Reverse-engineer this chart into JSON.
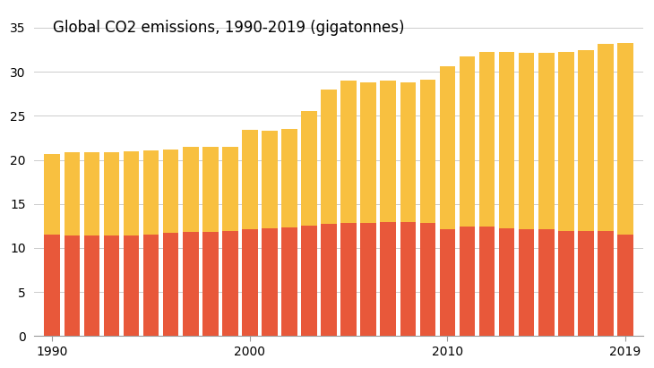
{
  "title": "Global CO2 emissions, 1990-2019 (gigatonnes)",
  "years": [
    1990,
    1991,
    1992,
    1993,
    1994,
    1995,
    1996,
    1997,
    1998,
    1999,
    2000,
    2001,
    2002,
    2003,
    2004,
    2005,
    2006,
    2007,
    2008,
    2009,
    2010,
    2011,
    2012,
    2013,
    2014,
    2015,
    2016,
    2017,
    2018,
    2019
  ],
  "bottom_values": [
    11.5,
    11.4,
    11.4,
    11.4,
    11.4,
    11.5,
    11.7,
    11.8,
    11.8,
    11.9,
    12.1,
    12.2,
    12.3,
    12.5,
    12.7,
    12.8,
    12.8,
    12.9,
    12.9,
    12.8,
    12.1,
    12.4,
    12.4,
    12.2,
    12.1,
    12.1,
    11.9,
    11.9,
    11.9,
    11.5
  ],
  "top_values": [
    9.2,
    9.5,
    9.5,
    9.5,
    9.6,
    9.6,
    9.5,
    9.7,
    9.7,
    9.6,
    11.3,
    11.1,
    11.2,
    13.0,
    15.3,
    16.2,
    16.0,
    16.1,
    15.9,
    16.3,
    18.5,
    19.3,
    19.8,
    20.0,
    20.0,
    20.0,
    20.3,
    20.5,
    21.3,
    21.8
  ],
  "bottom_color": "#E8583A",
  "top_color": "#F8C040",
  "background_color": "#ffffff",
  "grid_color": "#cccccc",
  "ylim": [
    0,
    37
  ],
  "yticks": [
    0,
    5,
    10,
    15,
    20,
    25,
    30,
    35
  ],
  "xtick_labels": [
    "1990",
    "2000",
    "2010",
    "2019"
  ],
  "xtick_positions": [
    1990,
    2000,
    2010,
    2019
  ],
  "title_fontsize": 12,
  "bar_width": 0.8
}
